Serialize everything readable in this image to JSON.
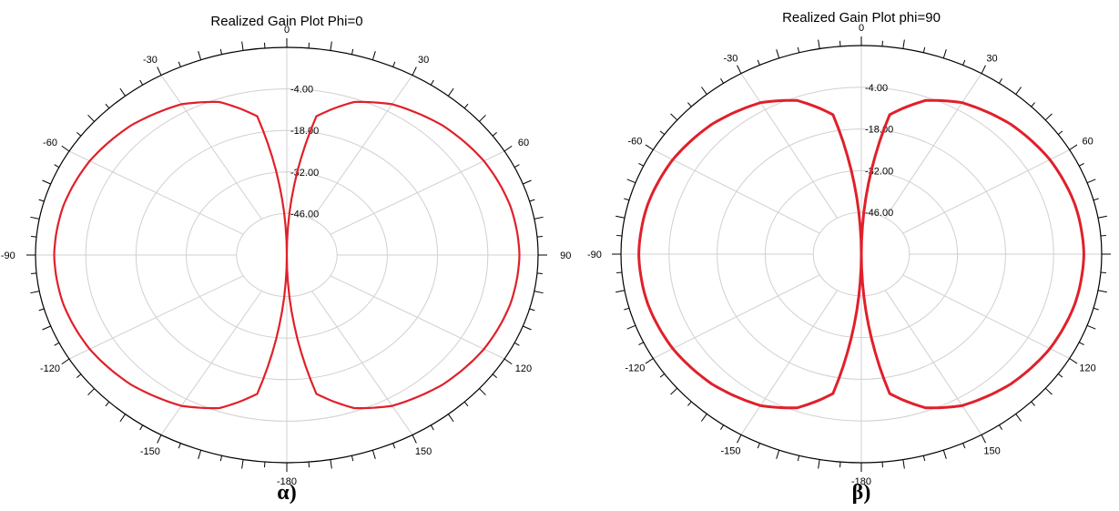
{
  "chart_data": [
    {
      "type": "polar-line",
      "title": "Realized Gain Plot Phi=0",
      "caption": "α)",
      "angle_labels": [
        "0",
        "30",
        "60",
        "90",
        "120",
        "150",
        "-180",
        "-150",
        "-120",
        "-90",
        "-60",
        "-30"
      ],
      "radial_labels": [
        "-4.00",
        "-18.00",
        "-32.00",
        "-46.00"
      ],
      "rlim_db": [
        -60,
        10
      ],
      "grid": true,
      "series": [
        {
          "color": "#e0202a",
          "theta_deg": [
            0,
            10,
            20,
            30,
            45,
            60,
            75,
            90,
            105,
            120,
            135,
            150,
            160,
            170,
            180,
            190,
            200,
            210,
            225,
            240,
            255,
            270,
            285,
            300,
            315,
            330,
            340,
            350
          ],
          "gain_db": [
            -60,
            -12.5,
            -5.1,
            -1.3,
            1.6,
            3.4,
            4.4,
            4.8,
            4.4,
            3.4,
            1.6,
            -1.3,
            -5.1,
            -12.5,
            -60,
            -12.5,
            -5.1,
            -1.3,
            1.6,
            3.4,
            4.4,
            4.8,
            4.4,
            3.4,
            1.6,
            -1.3,
            -5.1,
            -12.5
          ]
        }
      ]
    },
    {
      "type": "polar-line",
      "title": "Realized Gain Plot phi=90",
      "caption": "β)",
      "angle_labels": [
        "0",
        "30",
        "60",
        "90",
        "120",
        "150",
        "-180",
        "-150",
        "-120",
        "-90",
        "-60",
        "-30"
      ],
      "radial_labels": [
        "-4.00",
        "-18.00",
        "-32.00",
        "-46.00"
      ],
      "rlim_db": [
        -60,
        10
      ],
      "grid": true,
      "series": [
        {
          "color": "#e0202a",
          "theta_deg": [
            0,
            10,
            20,
            30,
            45,
            60,
            75,
            90,
            105,
            120,
            135,
            150,
            160,
            170,
            180,
            190,
            200,
            210,
            225,
            240,
            255,
            270,
            285,
            300,
            315,
            330,
            340,
            350
          ],
          "gain_db": [
            -60,
            -12.5,
            -5.1,
            -1.3,
            1.6,
            3.4,
            4.4,
            4.8,
            4.4,
            3.4,
            1.6,
            -1.3,
            -5.1,
            -12.5,
            -60,
            -12.5,
            -5.1,
            -1.3,
            1.6,
            3.4,
            4.4,
            4.8,
            4.4,
            3.4,
            1.6,
            -1.3,
            -5.1,
            -12.5
          ]
        }
      ]
    }
  ]
}
